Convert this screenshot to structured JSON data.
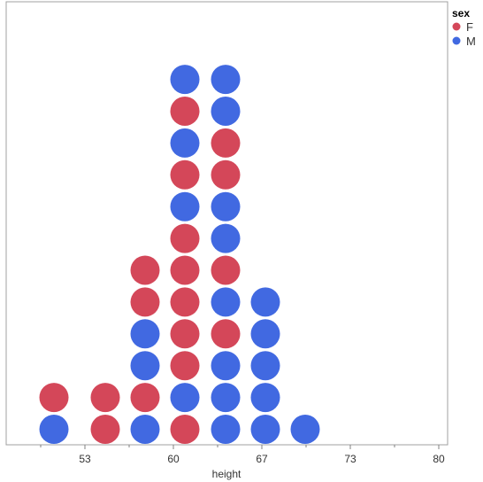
{
  "chart_data": {
    "type": "scatter",
    "subtype": "dot-plot",
    "xlabel": "height",
    "ylabel": "",
    "xlim": [
      47,
      80
    ],
    "x_ticks": [
      53,
      60,
      67,
      73,
      80
    ],
    "x_tick_labels": [
      "53",
      "60",
      "67",
      "73",
      "80"
    ],
    "grid": false,
    "legend": {
      "title": "sex",
      "placement": "top-right",
      "entries": [
        {
          "label": "F",
          "color": "#d44759"
        },
        {
          "label": "M",
          "color": "#4169e1"
        }
      ]
    },
    "stacks": [
      {
        "x": 51,
        "stack": [
          "M",
          "F"
        ]
      },
      {
        "x": 55,
        "stack": [
          "F",
          "F"
        ]
      },
      {
        "x": 58,
        "stack": [
          "M",
          "F",
          "M",
          "M",
          "F",
          "F"
        ]
      },
      {
        "x": 61,
        "stack": [
          "F",
          "M",
          "F",
          "F",
          "F",
          "F",
          "F",
          "M",
          "F",
          "M",
          "F",
          "M"
        ]
      },
      {
        "x": 65,
        "stack": [
          "M",
          "M",
          "M",
          "F",
          "M",
          "F",
          "M",
          "M",
          "F",
          "F",
          "M",
          "M"
        ]
      },
      {
        "x": 68,
        "stack": [
          "M",
          "M",
          "M",
          "M",
          "M"
        ]
      },
      {
        "x": 71,
        "stack": [
          "M"
        ]
      }
    ]
  }
}
